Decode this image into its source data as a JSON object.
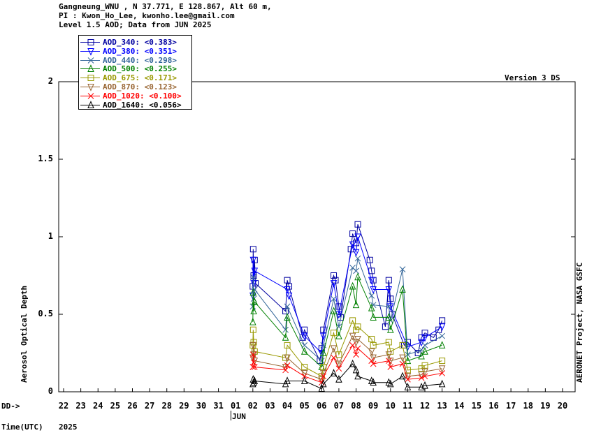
{
  "header": {
    "line1": "Gangneung_WNU , N 37.771, E 128.867, Alt 60 m,",
    "line2": "PI : Kwon_Ho_Lee, kwonho.lee@gmail.com",
    "line3": "Level 1.5 AOD; Data from JUN 2025"
  },
  "version_label": "Version 3 DS",
  "right_label": "AERONET Project, NASA GSFC",
  "dd_label": "DD->",
  "time_label": "Time(UTC)",
  "year_label": "2025",
  "month_label": "JUN",
  "chart_data": {
    "type": "scatter",
    "ylabel": "Aerosol Optical Depth",
    "ylim": [
      0,
      2
    ],
    "yticks": [
      "0",
      "0.5",
      "1",
      "1.5",
      "2"
    ],
    "xticks": [
      "22",
      "23",
      "24",
      "25",
      "26",
      "27",
      "28",
      "29",
      "30",
      "31",
      "01",
      "02",
      "03",
      "04",
      "05",
      "06",
      "07",
      "08",
      "09",
      "10",
      "11",
      "12",
      "13",
      "14",
      "15",
      "16",
      "17",
      "18",
      "19",
      "20"
    ],
    "legend_position": "top-left",
    "series": [
      {
        "name": "AOD_340",
        "mean": "<0.383>",
        "color": "#0000a0",
        "marker": "square",
        "points": [
          [
            1.0,
            0.68
          ],
          [
            1.02,
            0.92
          ],
          [
            1.05,
            0.75
          ],
          [
            1.1,
            0.85
          ],
          [
            1.15,
            0.7
          ],
          [
            2.9,
            0.52
          ],
          [
            3.0,
            0.72
          ],
          [
            3.1,
            0.68
          ],
          [
            3.9,
            0.35
          ],
          [
            4.0,
            0.4
          ],
          [
            4.9,
            0.2
          ],
          [
            5.0,
            0.28
          ],
          [
            5.1,
            0.4
          ],
          [
            5.7,
            0.75
          ],
          [
            5.8,
            0.72
          ],
          [
            6.0,
            0.55
          ],
          [
            6.1,
            0.48
          ],
          [
            6.7,
            0.92
          ],
          [
            6.8,
            1.02
          ],
          [
            7.0,
            0.96
          ],
          [
            7.1,
            1.08
          ],
          [
            7.8,
            0.85
          ],
          [
            7.9,
            0.78
          ],
          [
            8.0,
            0.72
          ],
          [
            8.7,
            0.42
          ],
          [
            8.9,
            0.72
          ],
          [
            9.0,
            0.6
          ],
          [
            9.1,
            0.5
          ],
          [
            9.8,
            0.3
          ],
          [
            10.0,
            0.32
          ],
          [
            10.6,
            0.25
          ],
          [
            10.8,
            0.35
          ],
          [
            11.0,
            0.38
          ],
          [
            11.5,
            0.35
          ],
          [
            11.8,
            0.4
          ],
          [
            12.0,
            0.46
          ]
        ]
      },
      {
        "name": "AOD_380",
        "mean": "<0.351>",
        "color": "#0000ff",
        "marker": "triangle-down",
        "points": [
          [
            1.0,
            0.62
          ],
          [
            1.02,
            0.85
          ],
          [
            1.05,
            0.7
          ],
          [
            1.1,
            0.78
          ],
          [
            3.0,
            0.66
          ],
          [
            3.1,
            0.62
          ],
          [
            4.0,
            0.36
          ],
          [
            5.0,
            0.25
          ],
          [
            5.1,
            0.36
          ],
          [
            5.7,
            0.7
          ],
          [
            6.0,
            0.5
          ],
          [
            6.8,
            0.95
          ],
          [
            7.0,
            0.9
          ],
          [
            7.1,
            1.0
          ],
          [
            7.9,
            0.72
          ],
          [
            8.0,
            0.66
          ],
          [
            8.9,
            0.66
          ],
          [
            9.0,
            0.55
          ],
          [
            10.0,
            0.29
          ],
          [
            10.8,
            0.32
          ],
          [
            11.0,
            0.35
          ],
          [
            12.0,
            0.42
          ]
        ]
      },
      {
        "name": "AOD_440",
        "mean": "<0.298>",
        "color": "#336699",
        "marker": "x",
        "points": [
          [
            1.0,
            0.55
          ],
          [
            1.02,
            0.74
          ],
          [
            1.05,
            0.6
          ],
          [
            1.1,
            0.66
          ],
          [
            2.9,
            0.4
          ],
          [
            3.0,
            0.55
          ],
          [
            4.0,
            0.3
          ],
          [
            5.0,
            0.2
          ],
          [
            5.1,
            0.3
          ],
          [
            5.7,
            0.6
          ],
          [
            6.0,
            0.42
          ],
          [
            6.8,
            0.8
          ],
          [
            7.0,
            0.78
          ],
          [
            7.1,
            0.86
          ],
          [
            7.9,
            0.62
          ],
          [
            8.0,
            0.56
          ],
          [
            8.9,
            0.55
          ],
          [
            9.0,
            0.46
          ],
          [
            9.7,
            0.79
          ],
          [
            10.0,
            0.24
          ],
          [
            10.8,
            0.27
          ],
          [
            11.0,
            0.3
          ],
          [
            12.0,
            0.36
          ]
        ]
      },
      {
        "name": "AOD_500",
        "mean": "<0.255>",
        "color": "#008000",
        "marker": "triangle-up",
        "points": [
          [
            1.0,
            0.45
          ],
          [
            1.02,
            0.64
          ],
          [
            1.05,
            0.52
          ],
          [
            1.1,
            0.58
          ],
          [
            2.9,
            0.35
          ],
          [
            3.0,
            0.48
          ],
          [
            4.0,
            0.26
          ],
          [
            5.0,
            0.16
          ],
          [
            5.1,
            0.25
          ],
          [
            5.7,
            0.52
          ],
          [
            6.0,
            0.36
          ],
          [
            6.8,
            0.68
          ],
          [
            7.0,
            0.56
          ],
          [
            7.1,
            0.74
          ],
          [
            7.9,
            0.54
          ],
          [
            8.0,
            0.48
          ],
          [
            8.9,
            0.48
          ],
          [
            9.0,
            0.4
          ],
          [
            9.7,
            0.66
          ],
          [
            10.0,
            0.2
          ],
          [
            10.8,
            0.23
          ],
          [
            11.0,
            0.26
          ],
          [
            12.0,
            0.3
          ]
        ]
      },
      {
        "name": "AOD_675",
        "mean": "<0.171>",
        "color": "#999900",
        "marker": "square",
        "points": [
          [
            1.0,
            0.3
          ],
          [
            1.02,
            0.4
          ],
          [
            1.05,
            0.32
          ],
          [
            1.1,
            0.26
          ],
          [
            2.9,
            0.22
          ],
          [
            3.0,
            0.3
          ],
          [
            4.0,
            0.16
          ],
          [
            5.0,
            0.1
          ],
          [
            5.1,
            0.16
          ],
          [
            5.7,
            0.38
          ],
          [
            6.0,
            0.24
          ],
          [
            6.8,
            0.46
          ],
          [
            7.0,
            0.4
          ],
          [
            7.1,
            0.42
          ],
          [
            7.9,
            0.34
          ],
          [
            8.0,
            0.3
          ],
          [
            8.9,
            0.32
          ],
          [
            9.0,
            0.26
          ],
          [
            9.7,
            0.3
          ],
          [
            10.0,
            0.14
          ],
          [
            10.8,
            0.15
          ],
          [
            11.0,
            0.17
          ],
          [
            12.0,
            0.2
          ]
        ]
      },
      {
        "name": "AOD_870",
        "mean": "<0.123>",
        "color": "#996633",
        "marker": "triangle-down",
        "points": [
          [
            1.0,
            0.22
          ],
          [
            1.02,
            0.3
          ],
          [
            1.05,
            0.24
          ],
          [
            1.1,
            0.2
          ],
          [
            2.9,
            0.16
          ],
          [
            3.0,
            0.22
          ],
          [
            4.0,
            0.12
          ],
          [
            5.0,
            0.08
          ],
          [
            5.1,
            0.12
          ],
          [
            5.7,
            0.28
          ],
          [
            6.0,
            0.18
          ],
          [
            6.8,
            0.36
          ],
          [
            7.0,
            0.32
          ],
          [
            7.1,
            0.34
          ],
          [
            7.9,
            0.26
          ],
          [
            8.0,
            0.22
          ],
          [
            8.9,
            0.24
          ],
          [
            9.0,
            0.2
          ],
          [
            9.7,
            0.22
          ],
          [
            10.0,
            0.1
          ],
          [
            10.8,
            0.11
          ],
          [
            11.0,
            0.13
          ],
          [
            12.0,
            0.15
          ]
        ]
      },
      {
        "name": "AOD_1020",
        "mean": "<0.100>",
        "color": "#ff0000",
        "marker": "x",
        "points": [
          [
            1.0,
            0.16
          ],
          [
            1.02,
            0.24
          ],
          [
            1.05,
            0.19
          ],
          [
            1.1,
            0.16
          ],
          [
            2.9,
            0.14
          ],
          [
            3.0,
            0.17
          ],
          [
            4.0,
            0.1
          ],
          [
            5.0,
            0.06
          ],
          [
            5.1,
            0.1
          ],
          [
            5.7,
            0.22
          ],
          [
            6.0,
            0.15
          ],
          [
            6.8,
            0.3
          ],
          [
            7.0,
            0.24
          ],
          [
            7.1,
            0.28
          ],
          [
            7.9,
            0.2
          ],
          [
            8.0,
            0.18
          ],
          [
            8.9,
            0.2
          ],
          [
            9.0,
            0.16
          ],
          [
            9.7,
            0.18
          ],
          [
            10.0,
            0.08
          ],
          [
            10.8,
            0.09
          ],
          [
            11.0,
            0.1
          ],
          [
            12.0,
            0.12
          ]
        ]
      },
      {
        "name": "AOD_1640",
        "mean": "<0.056>",
        "color": "#000000",
        "marker": "triangle-up",
        "points": [
          [
            1.0,
            0.05
          ],
          [
            1.02,
            0.08
          ],
          [
            1.05,
            0.06
          ],
          [
            1.1,
            0.07
          ],
          [
            2.9,
            0.05
          ],
          [
            3.0,
            0.07
          ],
          [
            4.0,
            0.07
          ],
          [
            5.0,
            0.02
          ],
          [
            5.1,
            0.05
          ],
          [
            5.7,
            0.12
          ],
          [
            6.0,
            0.08
          ],
          [
            6.8,
            0.18
          ],
          [
            7.0,
            0.14
          ],
          [
            7.1,
            0.1
          ],
          [
            7.9,
            0.07
          ],
          [
            8.0,
            0.06
          ],
          [
            8.9,
            0.06
          ],
          [
            9.0,
            0.05
          ],
          [
            9.7,
            0.1
          ],
          [
            10.0,
            0.03
          ],
          [
            10.8,
            0.03
          ],
          [
            11.0,
            0.04
          ],
          [
            12.0,
            0.05
          ]
        ]
      }
    ]
  }
}
